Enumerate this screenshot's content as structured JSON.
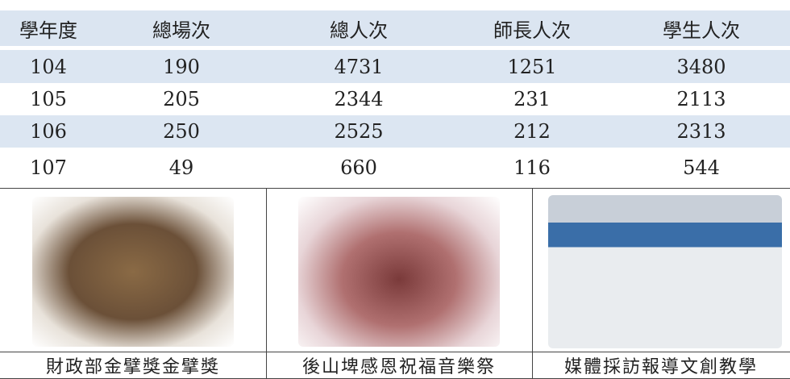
{
  "table": {
    "header": [
      "學年度",
      "總場次",
      "總人次",
      "師長人次",
      "學生人次"
    ],
    "rows": [
      [
        104,
        190,
        4731,
        1251,
        3480
      ],
      [
        105,
        205,
        2344,
        231,
        2113
      ],
      [
        106,
        250,
        2525,
        212,
        2313
      ],
      [
        107,
        49,
        660,
        116,
        544
      ]
    ]
  },
  "gallery": {
    "captions": [
      "財政部金擘獎金擘獎",
      "後山埤感恩祝福音樂祭",
      "媒體採訪報導文創教學"
    ]
  }
}
